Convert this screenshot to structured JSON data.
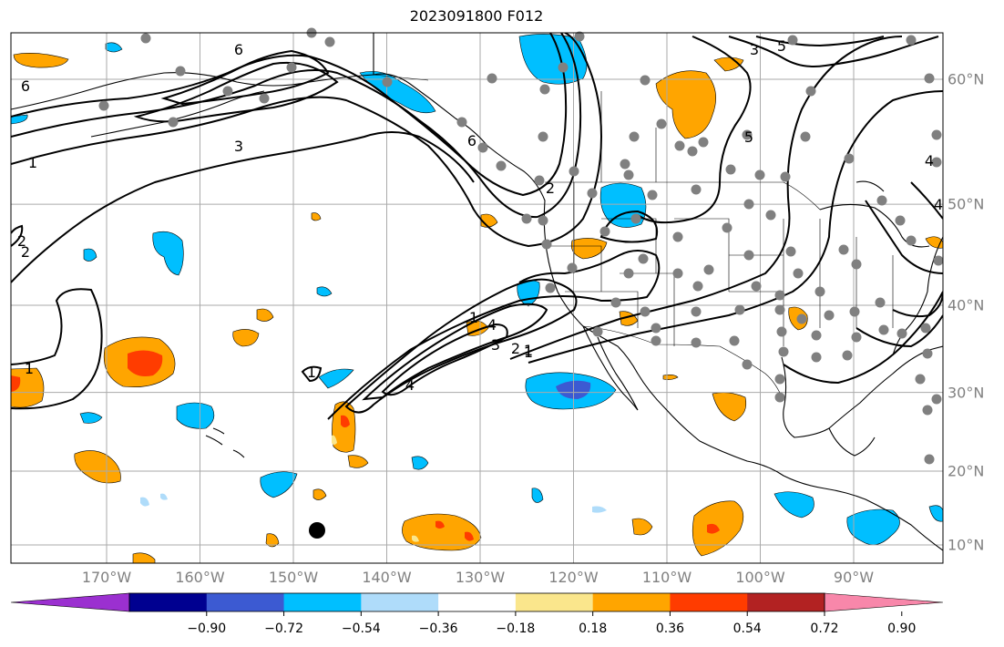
{
  "title": "2023091800 F012",
  "lon_labels": [
    {
      "value": -170,
      "label": "170°W"
    },
    {
      "value": -160,
      "label": "160°W"
    },
    {
      "value": -150,
      "label": "150°W"
    },
    {
      "value": -140,
      "label": "140°W"
    },
    {
      "value": -130,
      "label": "130°W"
    },
    {
      "value": -120,
      "label": "120°W"
    },
    {
      "value": -110,
      "label": "110°W"
    },
    {
      "value": -100,
      "label": "100°W"
    },
    {
      "value": -90,
      "label": "90°W"
    }
  ],
  "lat_labels": [
    {
      "value": 60,
      "label": "60°N"
    },
    {
      "value": 50,
      "label": "50°N"
    },
    {
      "value": 40,
      "label": "40°N"
    },
    {
      "value": 30,
      "label": "30°N"
    },
    {
      "value": 20,
      "label": "20°N"
    },
    {
      "value": 10,
      "label": "10°N"
    }
  ],
  "colorbar": {
    "colors": [
      "#9b30d0",
      "#000090",
      "#3c5ad2",
      "#00bfff",
      "#afdcfa",
      "#ffffff",
      "#fae68c",
      "#ffa500",
      "#ff3c00",
      "#b22222",
      "#f887aa"
    ],
    "tick_labels": [
      "−0.90",
      "−0.72",
      "−0.54",
      "−0.36",
      "−0.18",
      "0.18",
      "0.36",
      "0.54",
      "0.72",
      "0.90"
    ]
  },
  "contour_labels": [
    "6",
    "6",
    "5",
    "3",
    "1",
    "2",
    "1",
    "2",
    "6",
    "4",
    "4",
    "1",
    "2",
    "3",
    "5",
    "3",
    "2",
    "1",
    "4",
    "1",
    "1",
    "4"
  ],
  "colors": {
    "positive": "#ffa500",
    "positive_strong": "#ff3c00",
    "negative": "#00bfff",
    "negative_strong": "#3c5ad2",
    "station": "#808080"
  }
}
